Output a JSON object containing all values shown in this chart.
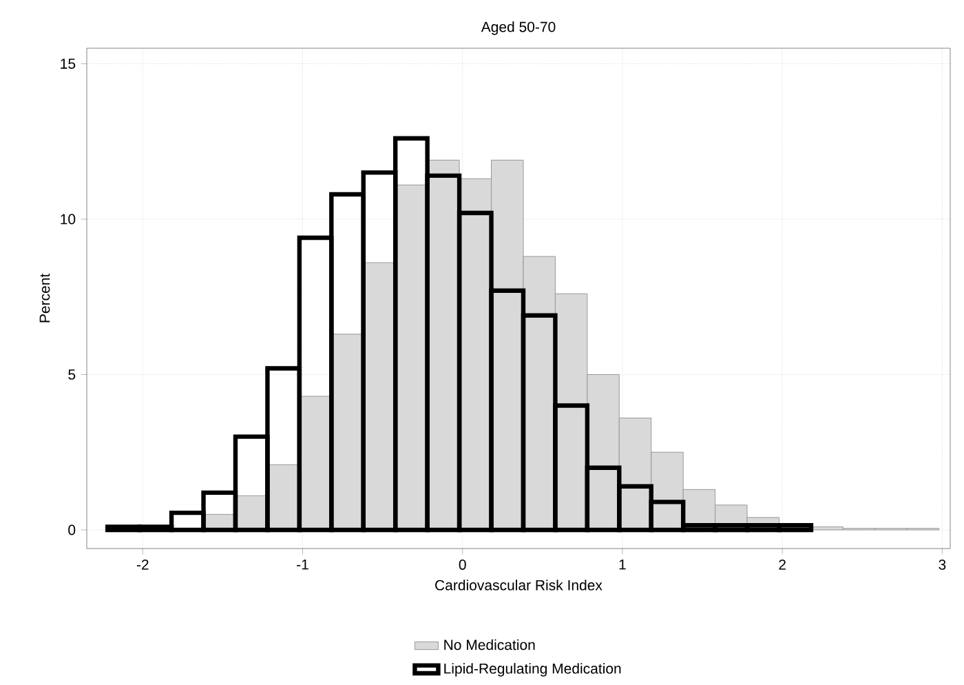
{
  "chart_data": {
    "type": "histogram",
    "title": "Aged 50-70",
    "xlabel": "Cardiovascular Risk Index",
    "ylabel": "Percent",
    "bins": [
      -2.22,
      -2.02,
      -1.82,
      -1.62,
      -1.42,
      -1.22,
      -1.02,
      -0.82,
      -0.62,
      -0.42,
      -0.22,
      -0.02,
      0.18,
      0.38,
      0.58,
      0.78,
      0.98,
      1.18,
      1.38,
      1.58,
      1.78,
      1.98,
      2.18,
      2.38,
      2.58,
      2.78,
      2.98
    ],
    "xlim": [
      -2.35,
      3.05
    ],
    "ylim": [
      -0.6,
      15.5
    ],
    "xticks": [
      -2,
      -1,
      0,
      1,
      2,
      3
    ],
    "yticks": [
      0,
      5,
      10,
      15
    ],
    "grid": true,
    "legend": "bottom",
    "series": [
      {
        "name": "No Medication",
        "color": "#d9d9d9",
        "values": [
          0.05,
          0.05,
          null,
          0.5,
          1.1,
          2.1,
          4.3,
          6.3,
          8.6,
          11.1,
          11.9,
          11.3,
          11.9,
          8.8,
          7.6,
          5.0,
          3.6,
          2.5,
          1.3,
          0.8,
          0.4,
          null,
          0.1,
          0.05,
          0.05,
          0.05
        ]
      },
      {
        "name": "Lipid-Regulating Medication",
        "color": "#000000",
        "values": [
          0.1,
          0.1,
          0.55,
          1.2,
          3.0,
          5.2,
          9.4,
          10.8,
          11.5,
          12.6,
          11.4,
          10.2,
          7.7,
          6.9,
          4.0,
          2.0,
          1.4,
          0.9,
          0.15,
          0.15,
          0.15,
          0.15,
          null,
          null,
          null,
          null
        ]
      }
    ]
  }
}
